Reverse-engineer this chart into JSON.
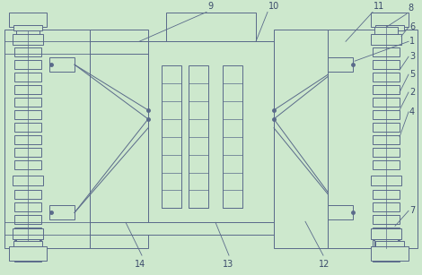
{
  "bg_color": "#cde8cd",
  "line_color": "#5a6a8a",
  "fill_color": "#cde8cd",
  "dark_line": "#3a4a6a",
  "figsize": [
    4.7,
    3.07
  ],
  "dpi": 100
}
